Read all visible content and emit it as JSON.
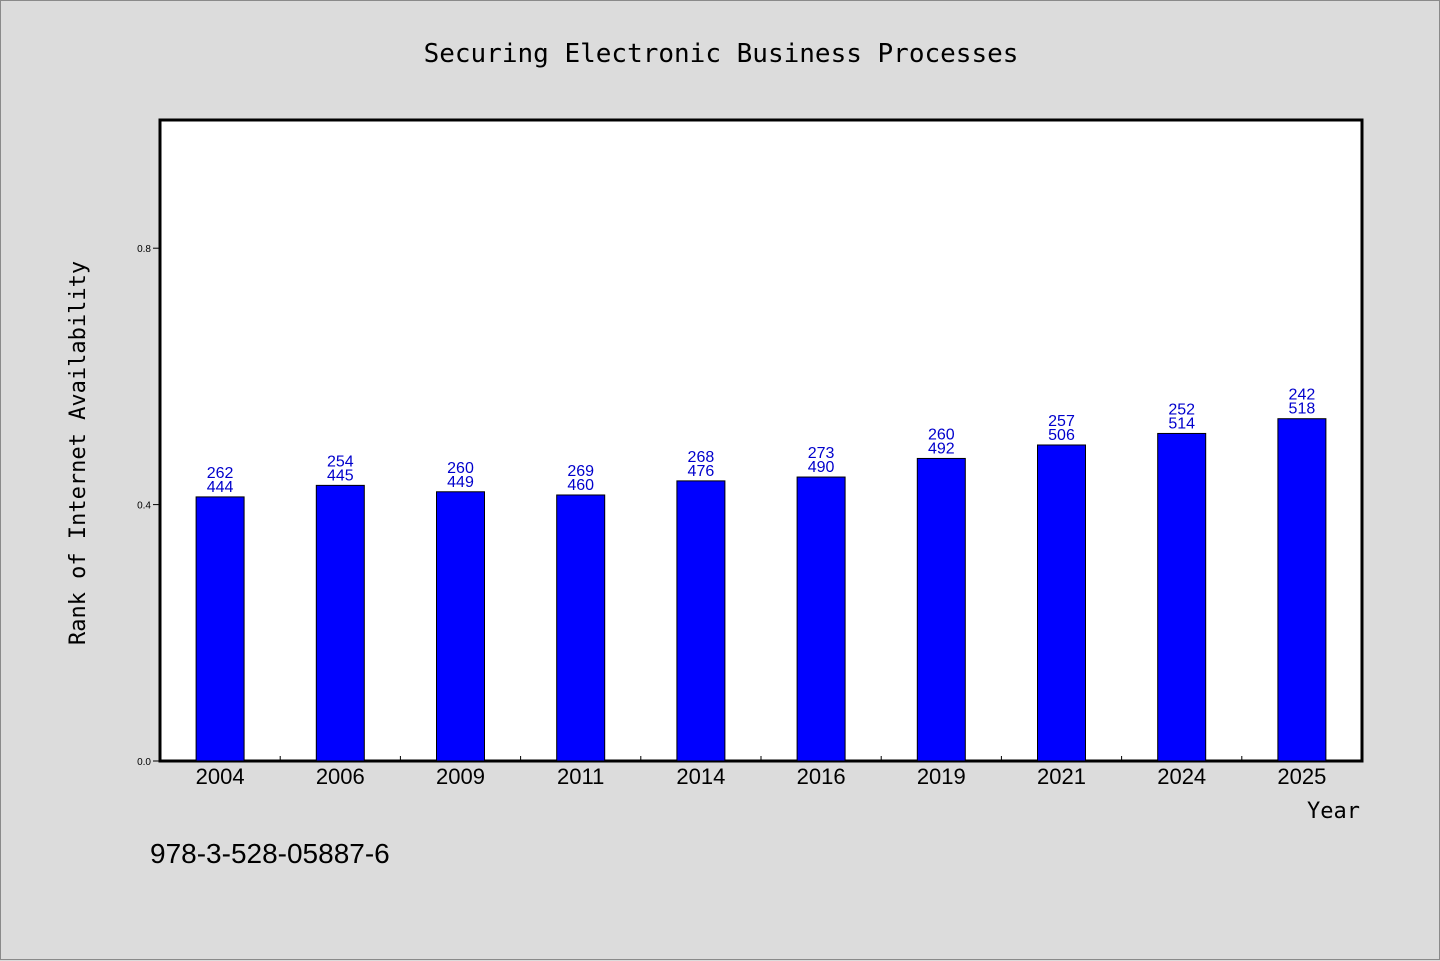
{
  "chart_data": {
    "type": "bar",
    "title": "Securing Electronic Business Processes",
    "xlabel": "Year",
    "ylabel": "Rank of Internet Availability",
    "categories": [
      "2004",
      "2006",
      "2009",
      "2011",
      "2014",
      "2016",
      "2019",
      "2021",
      "2024",
      "2025"
    ],
    "values": [
      0.412,
      0.43,
      0.42,
      0.415,
      0.437,
      0.443,
      0.472,
      0.493,
      0.511,
      0.534
    ],
    "label_top": [
      "262",
      "254",
      "260",
      "269",
      "268",
      "273",
      "260",
      "257",
      "252",
      "242"
    ],
    "label_bottom": [
      "444",
      "445",
      "449",
      "460",
      "476",
      "490",
      "492",
      "506",
      "514",
      "518"
    ],
    "yticks": [
      "0.0",
      "0.4",
      "0.8"
    ],
    "ylim": [
      0,
      1.0
    ],
    "grid": false,
    "bar_color": "#0000ff",
    "label_color": "#0000cc"
  },
  "footer": {
    "isbn": "978-3-528-05887-6"
  }
}
